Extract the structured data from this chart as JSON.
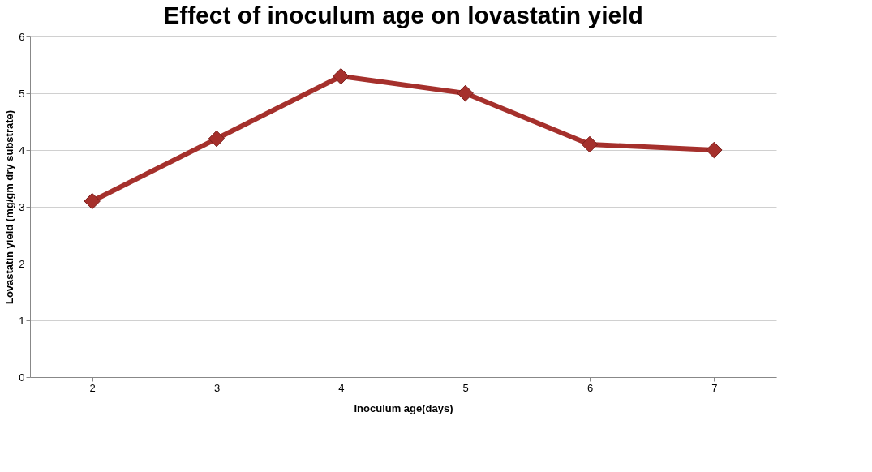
{
  "chart_data": {
    "type": "line",
    "title": "Effect of inoculum age on lovastatin yield",
    "xlabel": "Inoculum age(days)",
    "ylabel": "Lovastatin yield (mg/gm dry substrate)",
    "categories": [
      "2",
      "3",
      "4",
      "5",
      "6",
      "7"
    ],
    "series": [
      {
        "color": "#a5302c",
        "values": [
          3.1,
          4.2,
          5.3,
          5.0,
          4.1,
          4.0
        ]
      }
    ],
    "ylim": [
      0,
      6
    ],
    "yticks": [
      0,
      1,
      2,
      3,
      4,
      5,
      6
    ],
    "grid": "y",
    "marker": "diamond",
    "line_style": "solid"
  }
}
